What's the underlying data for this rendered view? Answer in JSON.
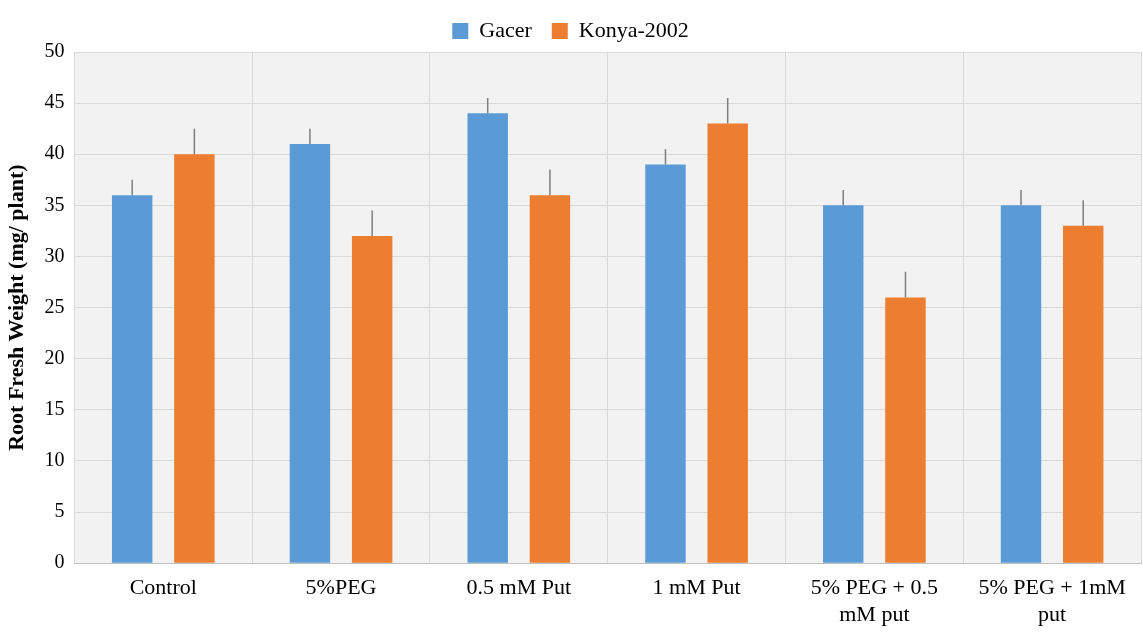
{
  "chart_data": {
    "type": "bar",
    "ylabel": "Root Fresh Weight (mg/ plant)",
    "categories": [
      "Control",
      "5%PEG",
      "0.5 mM Put",
      "1 mM Put",
      "5% PEG + 0.5 mM put",
      "5% PEG + 1mM put"
    ],
    "series": [
      {
        "name": "Gacer",
        "color": "#5b9bd5",
        "values": [
          36,
          41,
          44,
          39,
          35,
          35
        ],
        "errors": [
          [
            36,
            37.5
          ],
          [
            41,
            42.5
          ],
          [
            44,
            45.5
          ],
          [
            39,
            40.5
          ],
          [
            35,
            36.5
          ],
          [
            35,
            36.5
          ]
        ]
      },
      {
        "name": "Konya-2002",
        "color": "#ed7d31",
        "values": [
          40,
          32,
          36,
          43,
          26,
          33
        ],
        "errors": [
          [
            40,
            42.5
          ],
          [
            32,
            34.5
          ],
          [
            36,
            38.5
          ],
          [
            43,
            45.5
          ],
          [
            26,
            28.5
          ],
          [
            33,
            35.5
          ]
        ]
      }
    ],
    "ylim": [
      0,
      50
    ],
    "yticks": [
      0,
      5,
      10,
      15,
      20,
      25,
      30,
      35,
      40,
      45,
      50
    ],
    "grid": true,
    "legend": "top"
  }
}
